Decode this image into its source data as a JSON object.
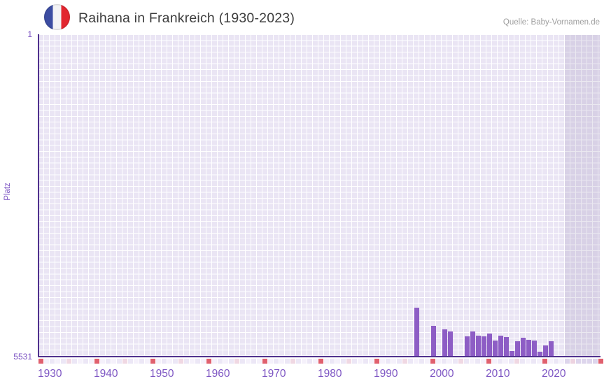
{
  "header": {
    "title": "Raihana in Frankreich (1930-2023)",
    "source": "Quelle: Baby-Vornamen.de",
    "flag_icon": "france-flag-icon"
  },
  "axes": {
    "y_title": "Platz",
    "y_top_tick": "1",
    "y_bottom_tick": "5531",
    "x_ticks": [
      "1930",
      "1940",
      "1950",
      "1960",
      "1970",
      "1980",
      "1990",
      "2000",
      "2010",
      "2020"
    ]
  },
  "chart_data": {
    "type": "bar",
    "title": "Raihana in Frankreich (1930-2023)",
    "xlabel": "",
    "ylabel": "Platz",
    "y_reversed": true,
    "ylim": [
      1,
      5531
    ],
    "x_axis_years": [
      1930,
      2030
    ],
    "data_years": [
      1930,
      2023
    ],
    "no_data_band_start": 2024,
    "grid": true,
    "legend": "none",
    "points": [
      {
        "year": 1997,
        "rank": 4705
      },
      {
        "year": 2000,
        "rank": 5008
      },
      {
        "year": 2002,
        "rank": 5072
      },
      {
        "year": 2003,
        "rank": 5113
      },
      {
        "year": 2006,
        "rank": 5189
      },
      {
        "year": 2007,
        "rank": 5108
      },
      {
        "year": 2008,
        "rank": 5177
      },
      {
        "year": 2009,
        "rank": 5191
      },
      {
        "year": 2010,
        "rank": 5144
      },
      {
        "year": 2011,
        "rank": 5264
      },
      {
        "year": 2012,
        "rank": 5176
      },
      {
        "year": 2013,
        "rank": 5209
      },
      {
        "year": 2014,
        "rank": 5452
      },
      {
        "year": 2015,
        "rank": 5281
      },
      {
        "year": 2016,
        "rank": 5213
      },
      {
        "year": 2017,
        "rank": 5257
      },
      {
        "year": 2018,
        "rank": 5269
      },
      {
        "year": 2019,
        "rank": 5455
      },
      {
        "year": 2020,
        "rank": 5353
      },
      {
        "year": 2021,
        "rank": 5279
      }
    ]
  },
  "colors": {
    "bar": "#8d5dc5",
    "axis_line": "#50318e",
    "tick_label": "#7d55c3",
    "grid_cell": "#eae5f4",
    "band_overlay": "rgba(109,91,146,0.14)",
    "decade_marker": "#e0606e",
    "half_decade_marker": "#f0d8e3",
    "marker_even": "#ece7f6",
    "marker_odd": "#f5f1fb",
    "marker_band": "#ddd5ec",
    "marker_band_half": "#edd3e0",
    "flag_blue": "#3c4da2",
    "flag_white": "#f3f3f5",
    "flag_red": "#e2262f",
    "title_text": "#3d3d3d",
    "source_text": "#9e9e9e"
  }
}
